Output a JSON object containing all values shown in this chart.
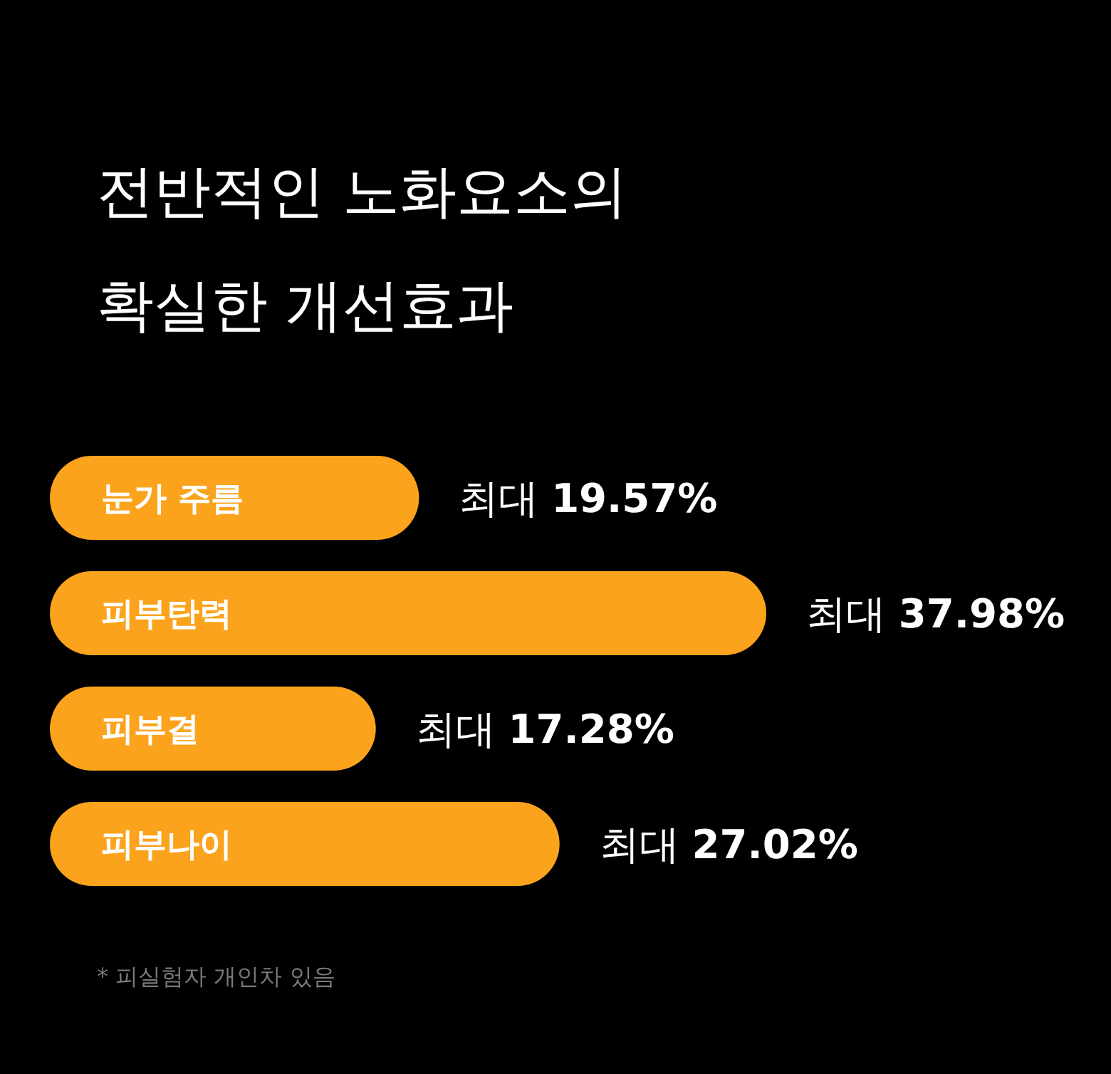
{
  "chart_data": {
    "type": "bar",
    "orientation": "horizontal",
    "title": "전반적인 노화요소의 확실한 개선효과",
    "categories": [
      "눈가 주름",
      "피부탄력",
      "피부결",
      "피부나이"
    ],
    "values": [
      19.57,
      37.98,
      17.28,
      27.02
    ],
    "value_labels": [
      "최대 **19.57%**",
      "최대 **37.98%**",
      "최대 **17.28%**",
      "최대 **27.02%**"
    ],
    "color": "#fba31c",
    "annotations": [
      "* 피실험자 개인차 있음"
    ]
  }
}
